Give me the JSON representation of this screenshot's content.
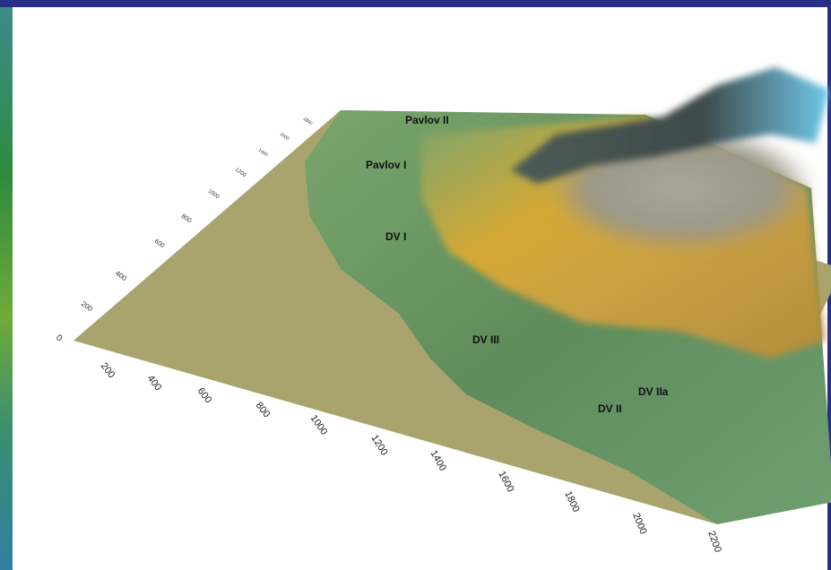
{
  "sites": [
    {
      "name": "Pavlov II"
    },
    {
      "name": "Pavlov I"
    },
    {
      "name": "DV I"
    },
    {
      "name": "DV III"
    },
    {
      "name": "DV IIa"
    },
    {
      "name": "DV II"
    }
  ],
  "x_axis": {
    "ticks": [
      "200",
      "400",
      "600",
      "800",
      "1000",
      "1200",
      "1400",
      "1600",
      "1800",
      "2000",
      "2200"
    ]
  },
  "y_axis": {
    "ticks": [
      "0",
      "200",
      "400",
      "600",
      "800",
      "1000",
      "1200",
      "1400",
      "1600",
      "1800"
    ]
  },
  "colors": {
    "frame": "#2a2f86",
    "plain": "#a9a46e",
    "lowland_green": "#6f9a66",
    "slope_yellow": "#d9a52a",
    "upland_grey": "#9c9a8e",
    "summit_blue": "#5ec3e6"
  }
}
